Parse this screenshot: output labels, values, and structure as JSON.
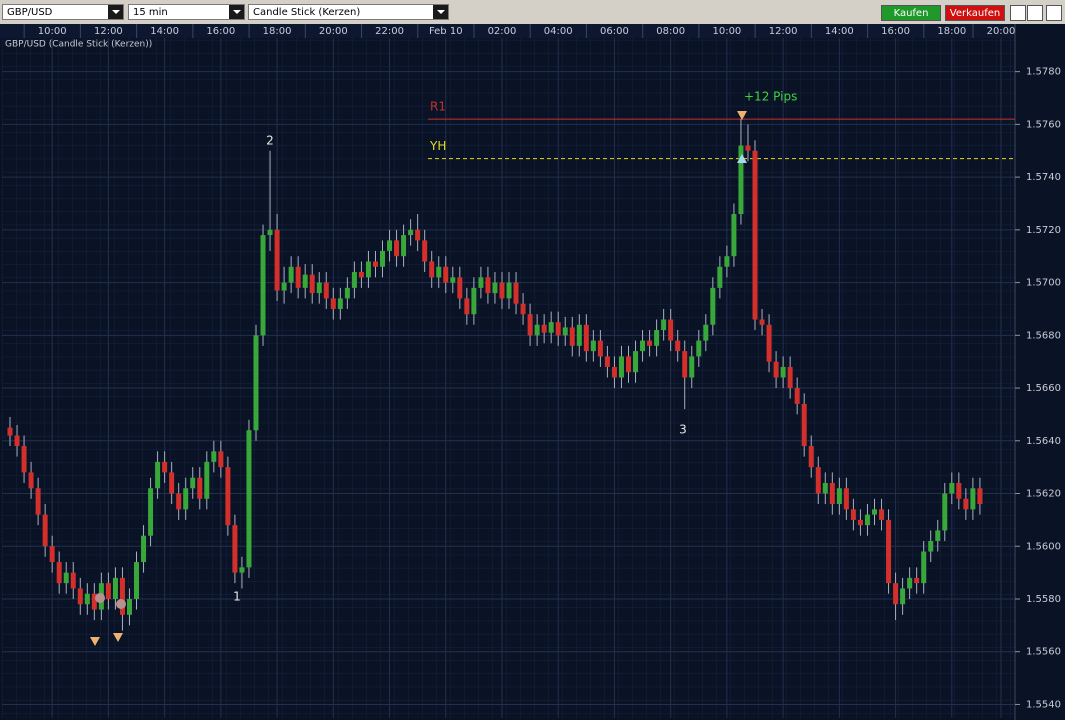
{
  "toolbar": {
    "symbol": "GBP/USD",
    "interval": "15 min",
    "chart_style": "Candle Stick (Kerzen)",
    "buy": "Kaufen",
    "sell": "Verkaufen"
  },
  "chart_data": {
    "type": "candlestick",
    "title": "GBP/USD (Candle Stick (Kerzen))",
    "categories": [
      null,
      null,
      null,
      null,
      null,
      null,
      "10:00",
      null,
      null,
      null,
      null,
      null,
      null,
      null,
      "12:00",
      null,
      null,
      null,
      null,
      null,
      null,
      null,
      "14:00",
      null,
      null,
      null,
      null,
      null,
      null,
      null,
      "16:00",
      null,
      null,
      null,
      null,
      null,
      null,
      null,
      "18:00",
      null,
      null,
      null,
      null,
      null,
      null,
      null,
      "20:00",
      null,
      null,
      null,
      null,
      null,
      null,
      null,
      "22:00",
      null,
      null,
      null,
      null,
      null,
      null,
      null,
      "Feb 10",
      null,
      null,
      null,
      null,
      null,
      null,
      null,
      "02:00",
      null,
      null,
      null,
      null,
      null,
      null,
      null,
      "04:00",
      null,
      null,
      null,
      null,
      null,
      null,
      null,
      "06:00",
      null,
      null,
      null,
      null,
      null,
      null,
      null,
      "08:00",
      null,
      null,
      null,
      null,
      null,
      null,
      null,
      "10:00",
      null,
      null,
      null,
      null,
      null,
      null,
      null,
      "12:00",
      null,
      null,
      null,
      null,
      null,
      null,
      null,
      "14:00",
      null,
      null,
      null,
      null,
      null,
      null,
      null,
      "16:00",
      null,
      null,
      null,
      null,
      null,
      null,
      null,
      "18:00",
      null,
      null,
      null,
      null,
      null,
      null,
      "20:00"
    ],
    "open": [
      1.5645,
      1.5642,
      1.5638,
      1.5628,
      1.5622,
      1.5612,
      1.56,
      1.5594,
      1.5586,
      1.559,
      1.5584,
      1.5578,
      1.5582,
      1.5576,
      1.5586,
      1.558,
      1.5588,
      1.5574,
      1.558,
      1.5594,
      1.5604,
      1.5622,
      1.5632,
      1.5628,
      1.562,
      1.5614,
      1.5622,
      1.5626,
      1.5618,
      1.5632,
      1.5636,
      1.563,
      1.5608,
      1.559,
      1.5592,
      1.5644,
      1.568,
      1.5718,
      1.572,
      1.5697,
      1.57,
      1.5706,
      1.5698,
      1.5703,
      1.5696,
      1.57,
      1.5694,
      1.569,
      1.5694,
      1.5698,
      1.5704,
      1.5702,
      1.5708,
      1.5706,
      1.5712,
      1.5716,
      1.571,
      1.5718,
      1.572,
      1.5716,
      1.5708,
      1.5702,
      1.5706,
      1.57,
      1.5702,
      1.5694,
      1.5688,
      1.5698,
      1.5702,
      1.5696,
      1.57,
      1.5694,
      1.57,
      1.5692,
      1.5688,
      1.568,
      1.5684,
      1.5681,
      1.5685,
      1.568,
      1.5683,
      1.5676,
      1.5684,
      1.5674,
      1.5678,
      1.5672,
      1.5668,
      1.5664,
      1.5672,
      1.5666,
      1.5674,
      1.5678,
      1.5676,
      1.5682,
      1.5686,
      1.5678,
      1.5674,
      1.5664,
      1.5672,
      1.5678,
      1.5684,
      1.5698,
      1.5706,
      1.571,
      1.5726,
      1.5752,
      1.575,
      1.5686,
      1.5684,
      1.567,
      1.5664,
      1.5668,
      1.566,
      1.5654,
      1.5638,
      1.563,
      1.562,
      1.5624,
      1.5616,
      1.5622,
      1.5614,
      1.561,
      1.5608,
      1.5612,
      1.5614,
      1.561,
      1.5586,
      1.5578,
      1.5584,
      1.5588,
      1.5586,
      1.5598,
      1.5602,
      1.5606,
      1.562,
      1.5624,
      1.5618,
      1.5614,
      1.5622,
      null,
      null,
      null
    ],
    "high": [
      1.5649,
      1.5646,
      1.5642,
      1.5632,
      1.5626,
      1.5616,
      1.5604,
      1.5598,
      1.5594,
      1.5594,
      1.5588,
      1.5586,
      1.5586,
      1.559,
      1.559,
      1.5592,
      1.5592,
      1.5584,
      1.5598,
      1.5608,
      1.5626,
      1.5636,
      1.5636,
      1.5632,
      1.5624,
      1.5626,
      1.563,
      1.563,
      1.5636,
      1.564,
      1.564,
      1.5634,
      1.5612,
      1.5596,
      1.5648,
      1.5684,
      1.5722,
      1.575,
      1.5726,
      1.5706,
      1.571,
      1.571,
      1.5707,
      1.5707,
      1.5704,
      1.5704,
      1.5698,
      1.5698,
      1.5702,
      1.5708,
      1.5708,
      1.5712,
      1.5712,
      1.5716,
      1.572,
      1.572,
      1.5722,
      1.5724,
      1.5726,
      1.572,
      1.5712,
      1.571,
      1.571,
      1.5706,
      1.5706,
      1.5698,
      1.5702,
      1.5706,
      1.5706,
      1.5704,
      1.5704,
      1.5704,
      1.5704,
      1.5696,
      1.5692,
      1.5688,
      1.5688,
      1.5689,
      1.5689,
      1.5687,
      1.5687,
      1.5688,
      1.5688,
      1.5682,
      1.5682,
      1.5676,
      1.5672,
      1.5676,
      1.5676,
      1.5678,
      1.5682,
      1.5682,
      1.5686,
      1.569,
      1.569,
      1.5682,
      1.5678,
      1.5676,
      1.5682,
      1.5688,
      1.5702,
      1.571,
      1.5714,
      1.573,
      1.5762,
      1.576,
      1.5754,
      1.569,
      1.5688,
      1.5674,
      1.5672,
      1.5672,
      1.5664,
      1.5658,
      1.5642,
      1.5634,
      1.5628,
      1.5628,
      1.5626,
      1.5626,
      1.5618,
      1.5614,
      1.5616,
      1.5618,
      1.5618,
      1.5614,
      1.559,
      1.5588,
      1.5592,
      1.5592,
      1.5602,
      1.5606,
      1.561,
      1.5624,
      1.5628,
      1.5628,
      1.5622,
      1.5626,
      1.5626,
      null,
      null,
      null
    ],
    "low": [
      1.5638,
      1.5634,
      1.5624,
      1.5618,
      1.5608,
      1.5596,
      1.559,
      1.5582,
      1.5582,
      1.558,
      1.5574,
      1.5574,
      1.5572,
      1.5572,
      1.5576,
      1.5576,
      1.5568,
      1.557,
      1.5576,
      1.559,
      1.56,
      1.5618,
      1.5624,
      1.5616,
      1.561,
      1.561,
      1.5618,
      1.5614,
      1.5614,
      1.5628,
      1.5626,
      1.5604,
      1.5586,
      1.5584,
      1.5588,
      1.564,
      1.5676,
      1.5712,
      1.5693,
      1.5692,
      1.5696,
      1.5694,
      1.5694,
      1.5692,
      1.5692,
      1.569,
      1.5686,
      1.5686,
      1.569,
      1.5694,
      1.5698,
      1.5698,
      1.5702,
      1.5702,
      1.5708,
      1.5706,
      1.5706,
      1.5714,
      1.5712,
      1.5704,
      1.5698,
      1.5698,
      1.5696,
      1.5696,
      1.569,
      1.5684,
      1.5684,
      1.5694,
      1.5692,
      1.5692,
      1.569,
      1.569,
      1.5688,
      1.5684,
      1.5676,
      1.5676,
      1.5677,
      1.5677,
      1.5676,
      1.5676,
      1.5672,
      1.5672,
      1.567,
      1.567,
      1.5668,
      1.5664,
      1.566,
      1.566,
      1.5662,
      1.5662,
      1.567,
      1.5672,
      1.5672,
      1.5678,
      1.5674,
      1.567,
      1.5652,
      1.566,
      1.5668,
      1.5674,
      1.568,
      1.5694,
      1.5702,
      1.5706,
      1.5722,
      1.5746,
      1.5682,
      1.568,
      1.5666,
      1.566,
      1.566,
      1.5656,
      1.565,
      1.5634,
      1.5626,
      1.5616,
      1.5616,
      1.5612,
      1.5612,
      1.561,
      1.5606,
      1.5604,
      1.5604,
      1.5608,
      1.5606,
      1.5582,
      1.5572,
      1.5574,
      1.558,
      1.5582,
      1.5582,
      1.5594,
      1.5598,
      1.5602,
      1.5616,
      1.5614,
      1.561,
      1.561,
      1.5612,
      null,
      null,
      null
    ],
    "close": [
      1.5642,
      1.5638,
      1.5628,
      1.5622,
      1.5612,
      1.56,
      1.5594,
      1.5586,
      1.559,
      1.5584,
      1.5578,
      1.5582,
      1.5576,
      1.5586,
      1.558,
      1.5588,
      1.5574,
      1.558,
      1.5594,
      1.5604,
      1.5622,
      1.5632,
      1.5628,
      1.562,
      1.5614,
      1.5622,
      1.5626,
      1.5618,
      1.5632,
      1.5636,
      1.563,
      1.5608,
      1.559,
      1.5592,
      1.5644,
      1.568,
      1.5718,
      1.572,
      1.5697,
      1.57,
      1.5706,
      1.5698,
      1.5703,
      1.5696,
      1.57,
      1.5694,
      1.569,
      1.5694,
      1.5698,
      1.5704,
      1.5702,
      1.5708,
      1.5706,
      1.5712,
      1.5716,
      1.571,
      1.5718,
      1.572,
      1.5716,
      1.5708,
      1.5702,
      1.5706,
      1.57,
      1.5702,
      1.5694,
      1.5688,
      1.5698,
      1.5702,
      1.5696,
      1.57,
      1.5694,
      1.57,
      1.5692,
      1.5688,
      1.568,
      1.5684,
      1.5681,
      1.5685,
      1.568,
      1.5683,
      1.5676,
      1.5684,
      1.5674,
      1.5678,
      1.5672,
      1.5668,
      1.5664,
      1.5672,
      1.5666,
      1.5674,
      1.5678,
      1.5676,
      1.5682,
      1.5686,
      1.5678,
      1.5674,
      1.5664,
      1.5672,
      1.5678,
      1.5684,
      1.5698,
      1.5706,
      1.571,
      1.5726,
      1.5752,
      1.575,
      1.5686,
      1.5684,
      1.567,
      1.5664,
      1.5668,
      1.566,
      1.5654,
      1.5638,
      1.563,
      1.562,
      1.5624,
      1.5616,
      1.5622,
      1.5614,
      1.561,
      1.5608,
      1.5612,
      1.5614,
      1.561,
      1.5586,
      1.5578,
      1.5584,
      1.5588,
      1.5586,
      1.5598,
      1.5602,
      1.5606,
      1.562,
      1.5624,
      1.5618,
      1.5614,
      1.5622,
      1.5616,
      null,
      null,
      null
    ],
    "up_color": "#38a83a",
    "down_color": "#d3302b",
    "wick_color": "#a8b0c0",
    "ylim": [
      1.5536,
      1.5792
    ],
    "yticks": [
      {
        "value": 1.554,
        "label": "1.5540"
      },
      {
        "value": 1.556,
        "label": "1.5560"
      },
      {
        "value": 1.558,
        "label": "1.5580"
      },
      {
        "value": 1.56,
        "label": "1.5600"
      },
      {
        "value": 1.562,
        "label": "1.5620"
      },
      {
        "value": 1.564,
        "label": "1.5640"
      },
      {
        "value": 1.566,
        "label": "1.5660"
      },
      {
        "value": 1.568,
        "label": "1.5680"
      },
      {
        "value": 1.57,
        "label": "1.5700"
      },
      {
        "value": 1.572,
        "label": "1.5720"
      },
      {
        "value": 1.574,
        "label": "1.5740"
      },
      {
        "value": 1.576,
        "label": "1.5760"
      },
      {
        "value": 1.578,
        "label": "1.5780"
      }
    ],
    "grid": true,
    "levels": [
      {
        "label": "R1",
        "value": 1.5762,
        "color": "#c8302a",
        "style": "solid"
      },
      {
        "label": "YH",
        "value": 1.5747,
        "color": "#e8d820",
        "style": "dashed"
      }
    ],
    "annotations": [
      "1",
      "2",
      "3",
      "+12 Pips"
    ]
  }
}
